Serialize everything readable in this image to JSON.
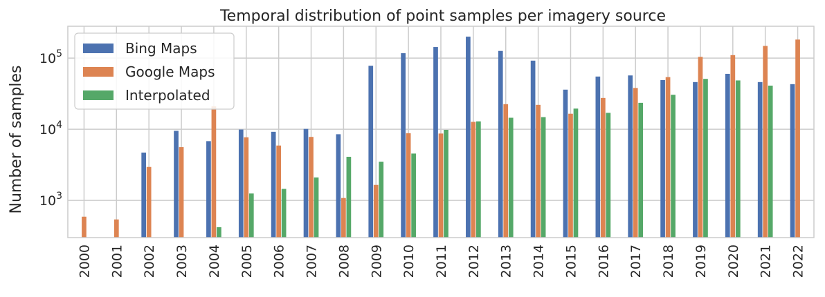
{
  "chart_data": {
    "type": "bar",
    "title": "Temporal distribution of point samples per imagery source",
    "xlabel": "",
    "ylabel": "Number of samples",
    "yscale": "log",
    "ylim": [
      300,
      280000
    ],
    "y_ticks": [
      {
        "value": 1000,
        "base": "10",
        "exp": "3"
      },
      {
        "value": 10000,
        "base": "10",
        "exp": "4"
      },
      {
        "value": 100000,
        "base": "10",
        "exp": "5"
      }
    ],
    "grid": true,
    "legend_position": "top-left",
    "categories": [
      "2000",
      "2001",
      "2002",
      "2003",
      "2004",
      "2005",
      "2006",
      "2007",
      "2008",
      "2009",
      "2010",
      "2011",
      "2012",
      "2013",
      "2014",
      "2015",
      "2016",
      "2017",
      "2018",
      "2019",
      "2020",
      "2021",
      "2022"
    ],
    "series": [
      {
        "name": "Bing Maps",
        "color": "#4c72b0",
        "values": [
          null,
          null,
          4700,
          9500,
          6800,
          9900,
          9200,
          10100,
          8500,
          78000,
          117000,
          143000,
          200000,
          126000,
          92000,
          36000,
          55000,
          57000,
          49000,
          46000,
          60000,
          46000,
          43000
        ]
      },
      {
        "name": "Google Maps",
        "color": "#dd8452",
        "values": [
          590,
          540,
          2950,
          5600,
          21000,
          7700,
          5900,
          7800,
          1080,
          1650,
          8800,
          8700,
          12700,
          22500,
          22000,
          16500,
          27500,
          38000,
          54000,
          104000,
          110000,
          148000,
          182000
        ]
      },
      {
        "name": "Interpolated",
        "color": "#55a868",
        "values": [
          null,
          null,
          null,
          null,
          420,
          1250,
          1450,
          2100,
          4100,
          3500,
          4550,
          9800,
          12900,
          14500,
          14800,
          19500,
          17000,
          23500,
          30500,
          51000,
          48500,
          41000,
          null
        ]
      }
    ]
  }
}
